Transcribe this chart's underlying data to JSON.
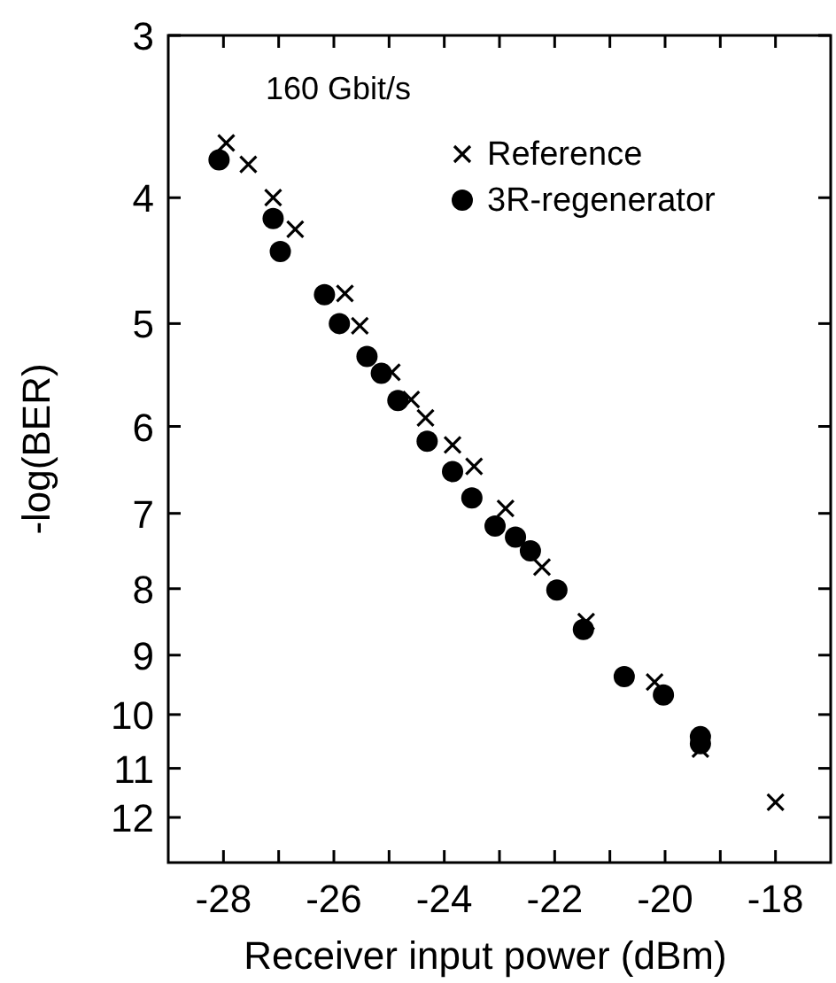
{
  "chart_data": {
    "type": "scatter",
    "xlabel": "Receiver input power (dBm)",
    "ylabel": "-log(BER)",
    "log": "y",
    "grid": false,
    "legend": "top right",
    "annotations": [
      "160 Gbit/s"
    ],
    "xlim": [
      -29,
      -17
    ],
    "xticks": [
      -28,
      {
        "value": -27,
        "label": null
      },
      -26,
      {
        "value": -25,
        "label": null
      },
      -24,
      {
        "value": -23,
        "label": null
      },
      -22,
      {
        "value": -21,
        "label": null
      },
      -20,
      {
        "value": -19,
        "label": null
      },
      -18
    ],
    "ylim": [
      13,
      3
    ],
    "yticks": [
      3,
      4,
      5,
      6,
      7,
      8,
      9,
      10,
      11,
      12
    ],
    "series": [
      {
        "name": "Reference",
        "color": "#000000",
        "marker": "cross",
        "x": [
          -27.95,
          -27.55,
          -27.1,
          -26.7,
          -25.8,
          -25.53,
          -24.95,
          -24.6,
          -24.34,
          -23.85,
          -23.46,
          -22.89,
          -22.23,
          -21.43,
          -20.19,
          -19.36,
          -18.0
        ],
        "values": [
          3.63,
          3.77,
          4.0,
          4.23,
          4.74,
          5.02,
          5.45,
          5.72,
          5.91,
          6.2,
          6.44,
          6.94,
          7.7,
          8.48,
          9.44,
          10.63,
          11.68
        ]
      },
      {
        "name": "3R-regenerator",
        "color": "#000000",
        "marker": "circle",
        "x": [
          -28.08,
          -27.1,
          -26.97,
          -26.17,
          -25.9,
          -25.4,
          -25.14,
          -24.84,
          -24.31,
          -23.85,
          -23.5,
          -23.08,
          -22.71,
          -22.44,
          -21.96,
          -21.48,
          -20.74,
          -20.03,
          -19.36,
          -19.36
        ],
        "values": [
          3.74,
          4.15,
          4.4,
          4.75,
          5.0,
          5.3,
          5.46,
          5.73,
          6.16,
          6.5,
          6.81,
          7.16,
          7.3,
          7.48,
          8.02,
          8.6,
          9.35,
          9.66,
          10.4,
          10.53
        ]
      }
    ]
  }
}
